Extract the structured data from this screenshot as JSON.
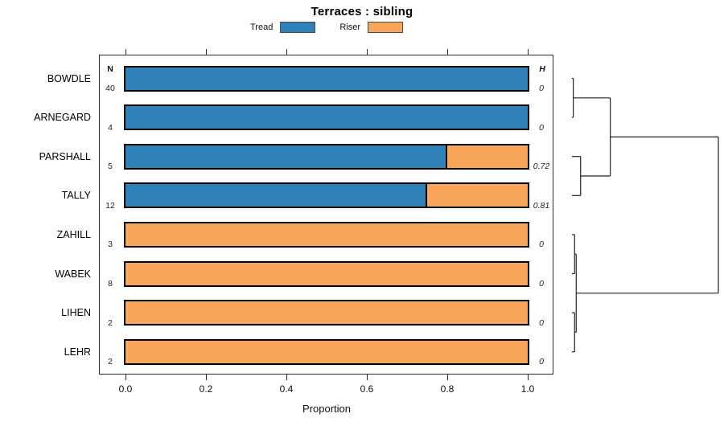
{
  "title": "Terraces : sibling",
  "legend": [
    {
      "label": "Tread",
      "color": "#2e82b8"
    },
    {
      "label": "Riser",
      "color": "#faa55c"
    }
  ],
  "columns": {
    "n_header": "N",
    "h_header": "H"
  },
  "chart_data": {
    "type": "bar",
    "orientation": "horizontal",
    "stacked": true,
    "title": "Terraces : sibling",
    "xlabel": "Proportion",
    "xlim": [
      0,
      1
    ],
    "x_ticks": [
      0.0,
      0.2,
      0.4,
      0.6,
      0.8,
      1.0
    ],
    "grid": false,
    "legend_position": "top",
    "categories": [
      "BOWDLE",
      "ARNEGARD",
      "PARSHALL",
      "TALLY",
      "ZAHILL",
      "WABEK",
      "LIHEN",
      "LEHR"
    ],
    "n_values": [
      "40",
      "4",
      "5",
      "12",
      "3",
      "8",
      "2",
      "2"
    ],
    "h_values": [
      "0",
      "0",
      "0.72",
      "0.81",
      "0",
      "0",
      "0",
      "0"
    ],
    "series": [
      {
        "name": "Tread",
        "color": "#2e82b8",
        "values": [
          1.0,
          1.0,
          0.8,
          0.75,
          0,
          0,
          0,
          0
        ]
      },
      {
        "name": "Riser",
        "color": "#faa55c",
        "values": [
          0,
          0,
          0.2,
          0.25,
          1.0,
          1.0,
          1.0,
          1.0
        ]
      }
    ],
    "dendrogram": {
      "leaves": [
        "BOWDLE",
        "ARNEGARD",
        "PARSHALL",
        "TALLY",
        "ZAHILL",
        "WABEK",
        "LIHEN",
        "LEHR"
      ],
      "merges": [
        {
          "id": "M1",
          "children": [
            "L0",
            "L1"
          ],
          "height": 0.009
        },
        {
          "id": "M2",
          "children": [
            "L2",
            "L3"
          ],
          "height": 0.059
        },
        {
          "id": "M3",
          "children": [
            "M1",
            "M2"
          ],
          "height": 0.262
        },
        {
          "id": "M4",
          "children": [
            "L4",
            "L5"
          ],
          "height": 0.018
        },
        {
          "id": "M5",
          "children": [
            "L6",
            "L7"
          ],
          "height": 0.018
        },
        {
          "id": "M6",
          "children": [
            "M4",
            "M5"
          ],
          "height": 0.029
        },
        {
          "id": "M7",
          "children": [
            "M3",
            "M6"
          ],
          "height": 1.0
        }
      ]
    }
  }
}
